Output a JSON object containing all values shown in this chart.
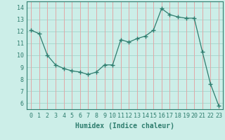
{
  "x": [
    0,
    1,
    2,
    3,
    4,
    5,
    6,
    7,
    8,
    9,
    10,
    11,
    12,
    13,
    14,
    15,
    16,
    17,
    18,
    19,
    20,
    21,
    22,
    23
  ],
  "y": [
    12.1,
    11.8,
    10.0,
    9.2,
    8.9,
    8.7,
    8.6,
    8.4,
    8.6,
    9.2,
    9.2,
    11.3,
    11.1,
    11.4,
    11.6,
    12.1,
    13.9,
    13.4,
    13.2,
    13.1,
    13.1,
    10.3,
    7.6,
    5.8
  ],
  "line_color": "#2e7d6e",
  "marker": "+",
  "marker_size": 4,
  "bg_color": "#cceee8",
  "grid_color_h": "#a8d8d0",
  "grid_color_v": "#e0a8a8",
  "xlabel": "Humidex (Indice chaleur)",
  "xlim": [
    -0.5,
    23.5
  ],
  "ylim": [
    5.5,
    14.5
  ],
  "yticks": [
    6,
    7,
    8,
    9,
    10,
    11,
    12,
    13,
    14
  ],
  "xticks": [
    0,
    1,
    2,
    3,
    4,
    5,
    6,
    7,
    8,
    9,
    10,
    11,
    12,
    13,
    14,
    15,
    16,
    17,
    18,
    19,
    20,
    21,
    22,
    23
  ],
  "tick_fontsize": 6,
  "xlabel_fontsize": 7
}
